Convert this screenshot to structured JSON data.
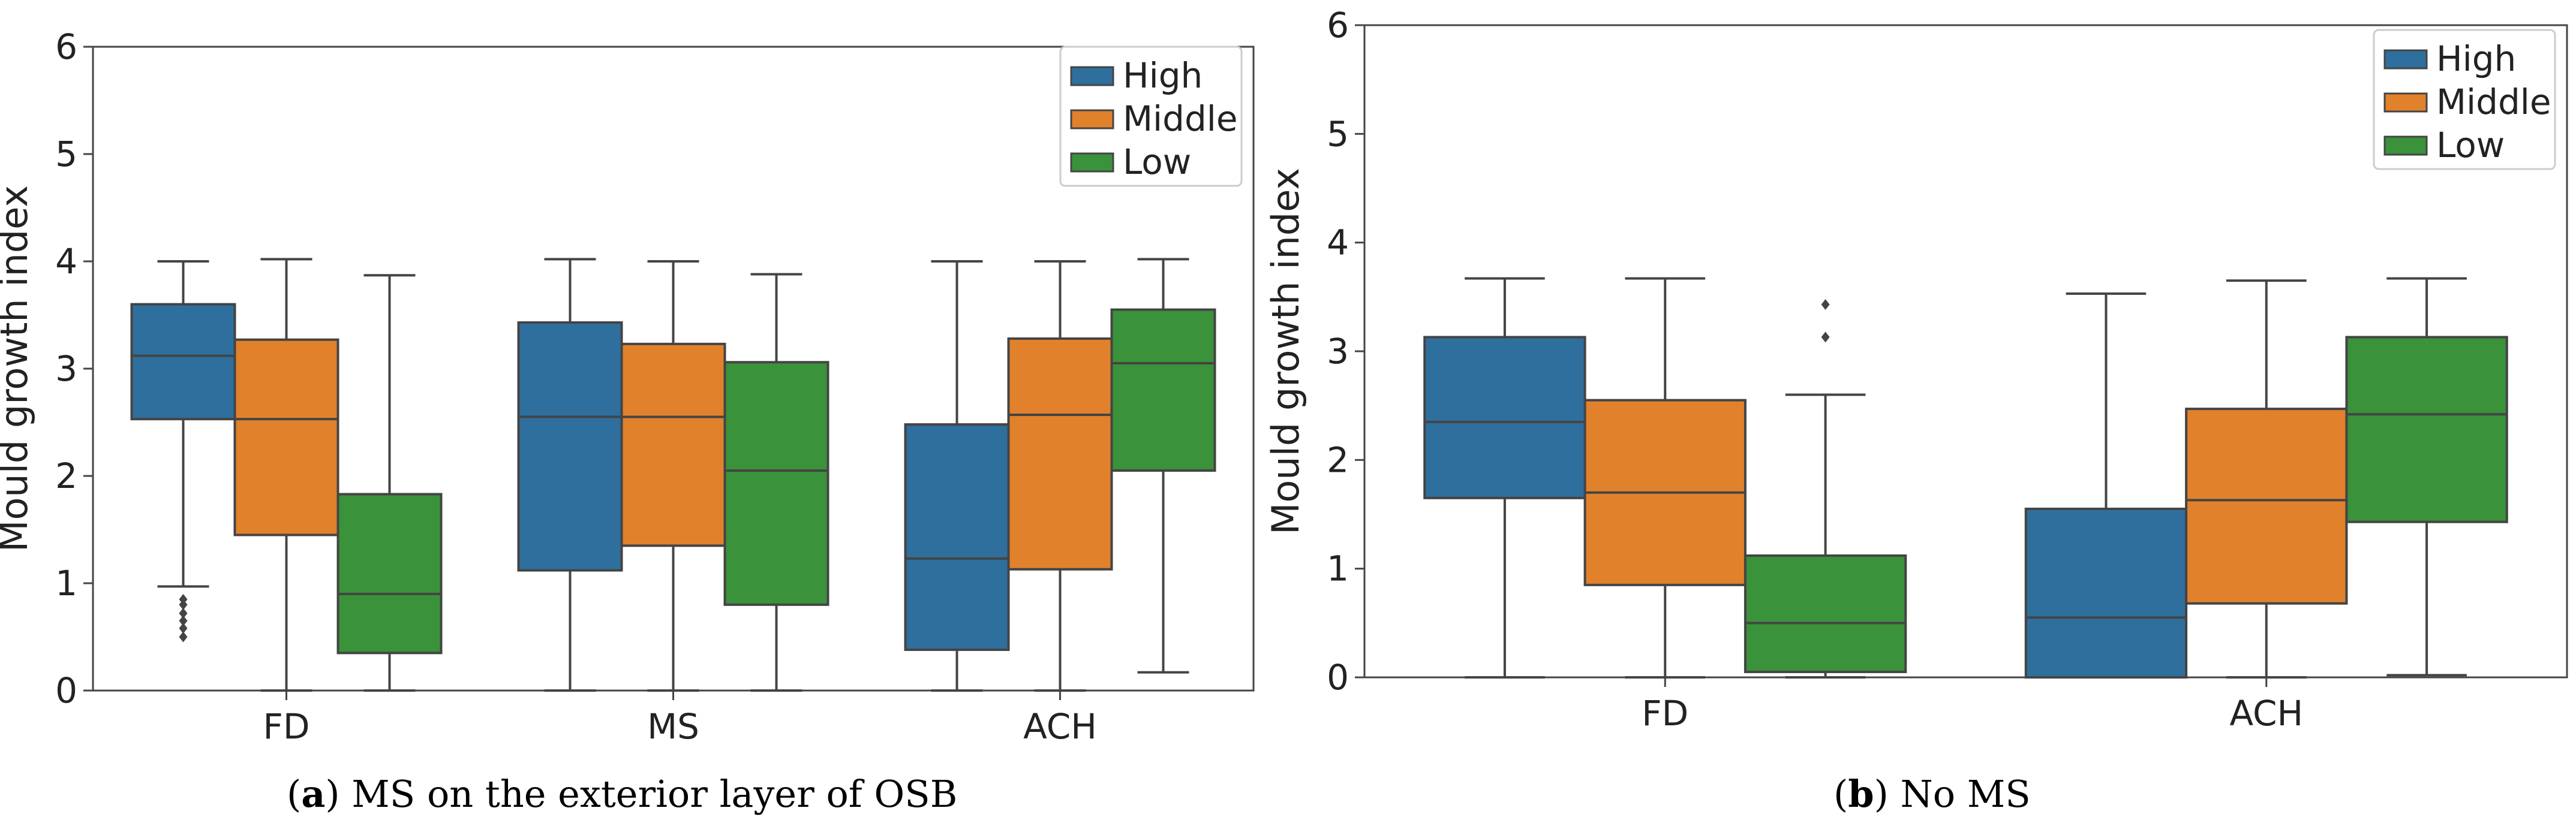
{
  "chart_data": [
    {
      "type": "box",
      "panel": "a",
      "ylabel": "Mould growth index",
      "ylim": [
        0,
        6
      ],
      "yticks": [
        0,
        1,
        2,
        3,
        4,
        5,
        6
      ],
      "categories": [
        "FD",
        "MS",
        "ACH"
      ],
      "legend": {
        "position": "top-right",
        "entries": [
          "High",
          "Middle",
          "Low"
        ]
      },
      "series": [
        {
          "name": "High",
          "color": "#2e6f9e",
          "boxes": [
            {
              "whislo": 0.97,
              "q1": 2.53,
              "med": 3.12,
              "q3": 3.6,
              "whishi": 4.0,
              "fliers": [
                0.5,
                0.58,
                0.65,
                0.72,
                0.8,
                0.85
              ]
            },
            {
              "whislo": 0.0,
              "q1": 1.12,
              "med": 2.55,
              "q3": 3.43,
              "whishi": 4.02,
              "fliers": []
            },
            {
              "whislo": 0.0,
              "q1": 0.38,
              "med": 1.23,
              "q3": 2.48,
              "whishi": 4.0,
              "fliers": []
            }
          ]
        },
        {
          "name": "Middle",
          "color": "#e1812c",
          "boxes": [
            {
              "whislo": 0.0,
              "q1": 1.45,
              "med": 2.53,
              "q3": 3.27,
              "whishi": 4.02,
              "fliers": []
            },
            {
              "whislo": 0.0,
              "q1": 1.35,
              "med": 2.55,
              "q3": 3.23,
              "whishi": 4.0,
              "fliers": []
            },
            {
              "whislo": 0.0,
              "q1": 1.13,
              "med": 2.57,
              "q3": 3.28,
              "whishi": 4.0,
              "fliers": []
            }
          ]
        },
        {
          "name": "Low",
          "color": "#3a923a",
          "boxes": [
            {
              "whislo": 0.0,
              "q1": 0.35,
              "med": 0.9,
              "q3": 1.83,
              "whishi": 3.87,
              "fliers": []
            },
            {
              "whislo": 0.0,
              "q1": 0.8,
              "med": 2.05,
              "q3": 3.06,
              "whishi": 3.88,
              "fliers": []
            },
            {
              "whislo": 0.17,
              "q1": 2.05,
              "med": 3.05,
              "q3": 3.55,
              "whishi": 4.02,
              "fliers": []
            }
          ]
        }
      ],
      "caption_letter": "a",
      "caption_text": " MS on the exterior layer of OSB"
    },
    {
      "type": "box",
      "panel": "b",
      "ylabel": "Mould growth index",
      "ylim": [
        0,
        6
      ],
      "yticks": [
        0,
        1,
        2,
        3,
        4,
        5,
        6
      ],
      "categories": [
        "FD",
        "ACH"
      ],
      "legend": {
        "position": "top-right",
        "entries": [
          "High",
          "Middle",
          "Low"
        ]
      },
      "series": [
        {
          "name": "High",
          "color": "#2e6f9e",
          "boxes": [
            {
              "whislo": 0.0,
              "q1": 1.65,
              "med": 2.35,
              "q3": 3.13,
              "whishi": 3.67,
              "fliers": []
            },
            {
              "whislo": 0.0,
              "q1": 0.0,
              "med": 0.55,
              "q3": 1.55,
              "whishi": 3.53,
              "fliers": []
            }
          ]
        },
        {
          "name": "Middle",
          "color": "#e1812c",
          "boxes": [
            {
              "whislo": 0.0,
              "q1": 0.85,
              "med": 1.7,
              "q3": 2.55,
              "whishi": 3.67,
              "fliers": []
            },
            {
              "whislo": 0.0,
              "q1": 0.68,
              "med": 1.63,
              "q3": 2.47,
              "whishi": 3.65,
              "fliers": []
            }
          ]
        },
        {
          "name": "Low",
          "color": "#3a923a",
          "boxes": [
            {
              "whislo": 0.0,
              "q1": 0.05,
              "med": 0.5,
              "q3": 1.12,
              "whishi": 2.6,
              "fliers": [
                3.13,
                3.43
              ]
            },
            {
              "whislo": 0.02,
              "q1": 1.43,
              "med": 2.42,
              "q3": 3.13,
              "whishi": 3.67,
              "fliers": []
            }
          ]
        }
      ],
      "caption_letter": "b",
      "caption_text": " No MS"
    }
  ]
}
